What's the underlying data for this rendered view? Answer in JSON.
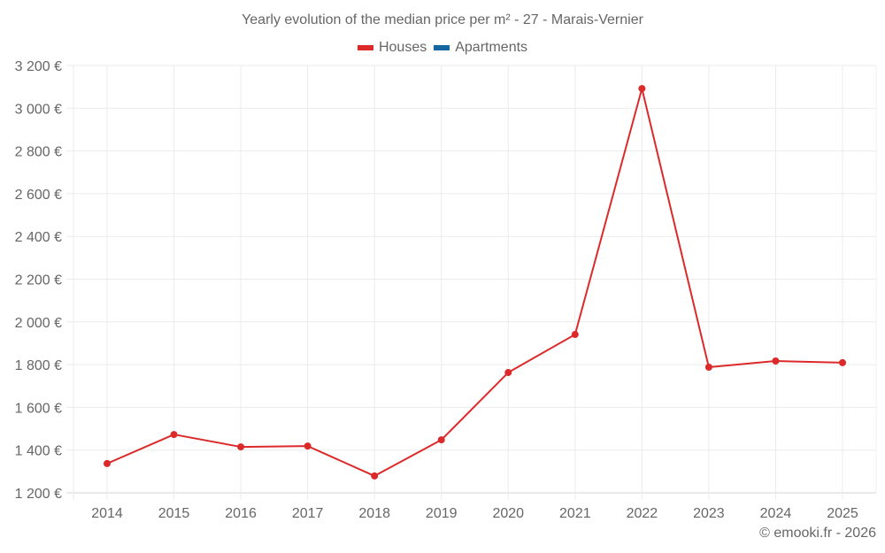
{
  "title": "Yearly evolution of the median price per m² - 27 - Marais-Vernier",
  "legend": [
    {
      "label": "Houses",
      "color": "#dc2a2a"
    },
    {
      "label": "Apartments",
      "color": "#1565a0"
    }
  ],
  "credit": "© emooki.fr - 2026",
  "chart_data": {
    "type": "line",
    "title": "Yearly evolution of the median price per m² - 27 - Marais-Vernier",
    "xlabel": "",
    "ylabel": "",
    "categories": [
      "2014",
      "2015",
      "2016",
      "2017",
      "2018",
      "2019",
      "2020",
      "2021",
      "2022",
      "2023",
      "2024",
      "2025"
    ],
    "series": [
      {
        "name": "Houses",
        "color": "#dc2a2a",
        "values": [
          1337,
          1473,
          1415,
          1419,
          1279,
          1448,
          1763,
          1941,
          3092,
          1788,
          1817,
          1809
        ]
      },
      {
        "name": "Apartments",
        "color": "#1565a0",
        "values": []
      }
    ],
    "ylim": [
      1200,
      3200
    ],
    "yticks": [
      1200,
      1400,
      1600,
      1800,
      2000,
      2200,
      2400,
      2600,
      2800,
      3000,
      3200
    ],
    "ytick_labels": [
      "1 200 €",
      "1 400 €",
      "1 600 €",
      "1 800 €",
      "2 000 €",
      "2 200 €",
      "2 400 €",
      "2 600 €",
      "2 800 €",
      "3 000 €",
      "3 200 €"
    ],
    "grid": true,
    "legend_position": "top"
  }
}
